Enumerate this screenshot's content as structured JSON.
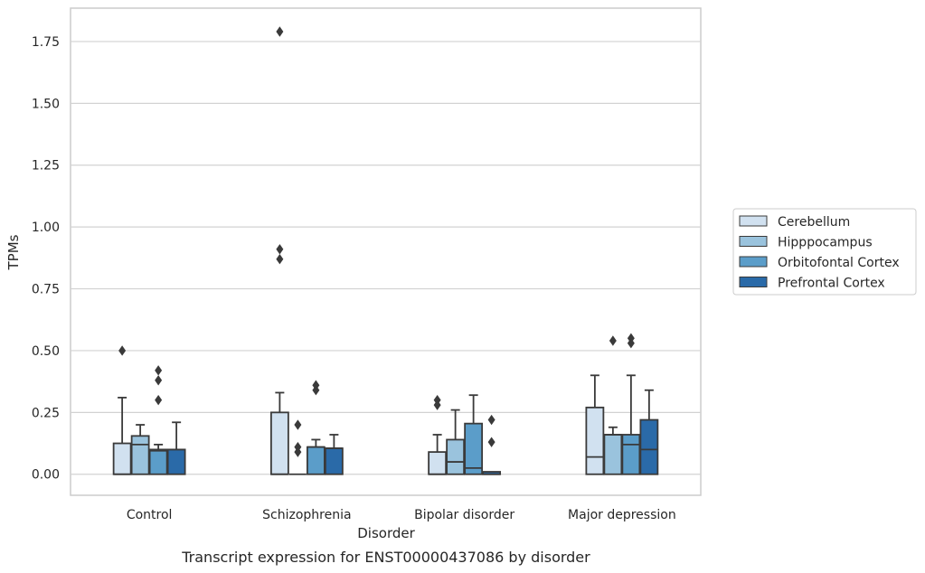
{
  "chart_data": {
    "type": "box",
    "title": "",
    "caption": "Transcript expression for ENST00000437086 by disorder",
    "xlabel": "Disorder",
    "ylabel": "TPMs",
    "ylim": [
      -0.085,
      1.885
    ],
    "yticks": [
      0.0,
      0.25,
      0.5,
      0.75,
      1.0,
      1.25,
      1.5,
      1.75
    ],
    "ytick_labels": [
      "0.00",
      "0.25",
      "0.50",
      "0.75",
      "1.00",
      "1.25",
      "1.50",
      "1.75"
    ],
    "grid": "horizontal",
    "legend_position": "right",
    "categories": [
      "Control",
      "Schizophrenia",
      "Bipolar disorder",
      "Major depression"
    ],
    "series": [
      {
        "name": "Cerebellum",
        "color": "#d1e1f0",
        "boxes": [
          {
            "whisker_low": 0.0,
            "q1": 0.0,
            "median": 0.0,
            "q3": 0.125,
            "whisker_high": 0.31,
            "outliers": [
              0.5
            ]
          },
          {
            "whisker_low": 0.0,
            "q1": 0.0,
            "median": 0.0,
            "q3": 0.25,
            "whisker_high": 0.33,
            "outliers": [
              0.87,
              0.91,
              1.79
            ]
          },
          {
            "whisker_low": 0.0,
            "q1": 0.0,
            "median": 0.0,
            "q3": 0.09,
            "whisker_high": 0.16,
            "outliers": [
              0.28,
              0.3
            ]
          },
          {
            "whisker_low": 0.0,
            "q1": 0.0,
            "median": 0.07,
            "q3": 0.27,
            "whisker_high": 0.4,
            "outliers": []
          }
        ]
      },
      {
        "name": "Hipppocampus",
        "color": "#9ac3dd",
        "boxes": [
          {
            "whisker_low": 0.0,
            "q1": 0.0,
            "median": 0.12,
            "q3": 0.155,
            "whisker_high": 0.2,
            "outliers": []
          },
          {
            "whisker_low": 0.0,
            "q1": 0.0,
            "median": 0.0,
            "q3": 0.0,
            "whisker_high": 0.0,
            "outliers": [
              0.09,
              0.11,
              0.2
            ]
          },
          {
            "whisker_low": 0.0,
            "q1": 0.0,
            "median": 0.05,
            "q3": 0.14,
            "whisker_high": 0.26,
            "outliers": []
          },
          {
            "whisker_low": 0.0,
            "q1": 0.0,
            "median": 0.16,
            "q3": 0.16,
            "whisker_high": 0.19,
            "outliers": [
              0.54
            ]
          }
        ]
      },
      {
        "name": "Orbitofontal Cortex",
        "color": "#5b9dc9",
        "boxes": [
          {
            "whisker_low": 0.0,
            "q1": 0.0,
            "median": 0.095,
            "q3": 0.1,
            "whisker_high": 0.12,
            "outliers": [
              0.3,
              0.38,
              0.42
            ]
          },
          {
            "whisker_low": 0.0,
            "q1": 0.0,
            "median": 0.11,
            "q3": 0.11,
            "whisker_high": 0.14,
            "outliers": [
              0.34,
              0.36
            ]
          },
          {
            "whisker_low": 0.0,
            "q1": 0.0,
            "median": 0.025,
            "q3": 0.205,
            "whisker_high": 0.32,
            "outliers": []
          },
          {
            "whisker_low": 0.0,
            "q1": 0.0,
            "median": 0.12,
            "q3": 0.16,
            "whisker_high": 0.4,
            "outliers": [
              0.53,
              0.55
            ]
          }
        ]
      },
      {
        "name": "Prefrontal Cortex",
        "color": "#2a6aa8",
        "boxes": [
          {
            "whisker_low": 0.0,
            "q1": 0.0,
            "median": 0.1,
            "q3": 0.1,
            "whisker_high": 0.21,
            "outliers": []
          },
          {
            "whisker_low": 0.0,
            "q1": 0.0,
            "median": 0.105,
            "q3": 0.105,
            "whisker_high": 0.16,
            "outliers": []
          },
          {
            "whisker_low": 0.0,
            "q1": 0.0,
            "median": 0.0,
            "q3": 0.01,
            "whisker_high": 0.01,
            "outliers": [
              0.13,
              0.22
            ]
          },
          {
            "whisker_low": 0.0,
            "q1": 0.0,
            "median": 0.1,
            "q3": 0.22,
            "whisker_high": 0.34,
            "outliers": []
          }
        ]
      }
    ]
  }
}
